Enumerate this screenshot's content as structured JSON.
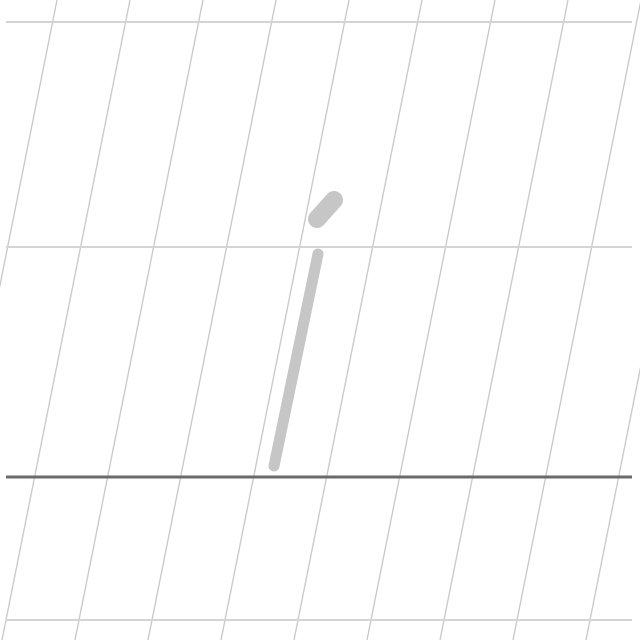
{
  "worksheet": {
    "letter": "i",
    "colors": {
      "background": "#ffffff",
      "slant_guide": "#c8c8c8",
      "horizontal_guide": "#d4d4d4",
      "baseline": "#6a6a6a",
      "stroke": "#c6c6c6"
    }
  }
}
